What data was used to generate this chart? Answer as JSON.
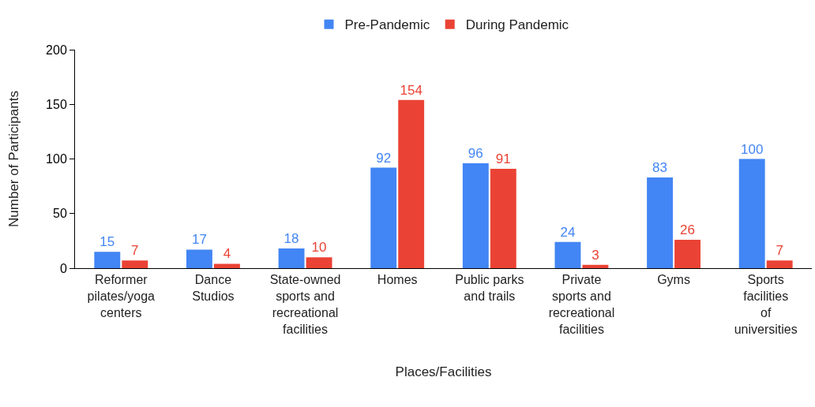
{
  "chart_data": {
    "type": "bar",
    "xlabel": "Places/Facilities",
    "ylabel": "Number of Participants",
    "categories": [
      "Reformer pilates/yoga centers",
      "Dance Studios",
      "State-owned sports and recreational facilities",
      "Homes",
      "Public parks and trails",
      "Private sports and recreational facilities",
      "Gyms",
      "Sports facilities of universities"
    ],
    "series": [
      {
        "name": "Pre-Pandemic",
        "color": "#4285f4",
        "values": [
          15,
          17,
          18,
          92,
          96,
          24,
          83,
          100
        ]
      },
      {
        "name": "During Pandemic",
        "color": "#ea4335",
        "values": [
          7,
          4,
          10,
          154,
          91,
          3,
          26,
          7
        ]
      }
    ],
    "ylim": [
      0,
      200
    ],
    "yticks": [
      0,
      50,
      100,
      150,
      200
    ],
    "grid": false,
    "legend": "top",
    "data_labels": true
  }
}
